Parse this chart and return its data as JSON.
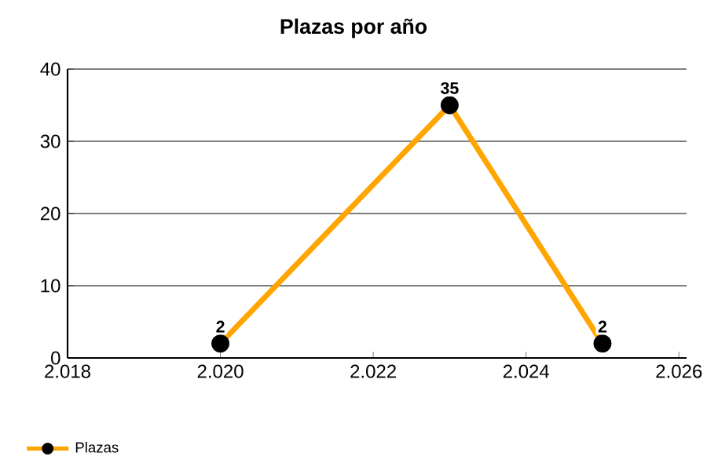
{
  "chart_data": {
    "type": "line",
    "title": "Plazas por año",
    "x": [
      2020,
      2023,
      2025
    ],
    "series": [
      {
        "name": "Plazas",
        "color": "#ffa500",
        "values": [
          2,
          35,
          2
        ]
      }
    ],
    "xlim": [
      2018,
      2026.1
    ],
    "xticks": [
      {
        "value": 2018,
        "label": "2.018"
      },
      {
        "value": 2020,
        "label": "2.020"
      },
      {
        "value": 2022,
        "label": "2.022"
      },
      {
        "value": 2024,
        "label": "2.024"
      },
      {
        "value": 2026,
        "label": "2.026"
      }
    ],
    "ylim": [
      0,
      40
    ],
    "yticks": [
      0,
      10,
      20,
      30,
      40
    ],
    "grid": "y",
    "legend": "bottom left",
    "marker": "circle",
    "line_style": "solid",
    "data_labels": true
  }
}
